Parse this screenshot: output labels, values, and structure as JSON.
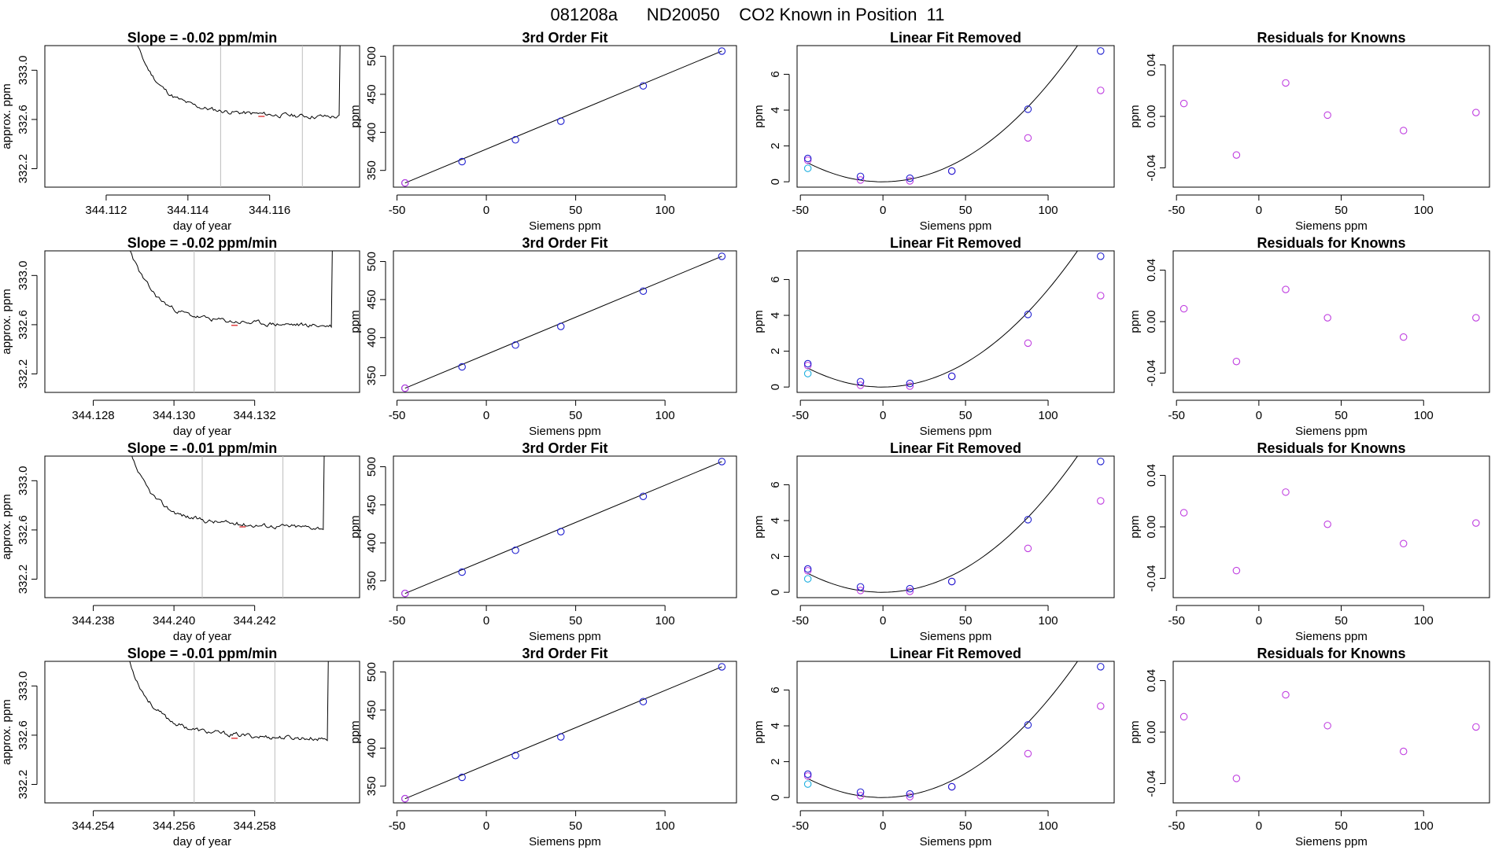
{
  "page": {
    "title": "081208a      ND20050    CO2 Known in Position  11"
  },
  "colors": {
    "axis": "#000000",
    "trace": "#000000",
    "vline": "#bdbdbd",
    "redmark": "#e04040",
    "fit_point": "#2020d0",
    "known_point": "#c040e0",
    "cyan_point": "#20b0e0"
  },
  "labels": {
    "xlabel_time": "day of year",
    "ylabel_time": "approx. ppm",
    "title_fit": "3rd Order Fit",
    "title_lin": "Linear Fit Removed",
    "title_res": "Residuals for Knowns",
    "xlabel_siemens": "Siemens ppm",
    "ylabel_ppm": "ppm"
  },
  "chart_data": [
    {
      "type": "line",
      "row": 1,
      "title": "Slope =  -0.02  ppm/min",
      "xlabel": "day of year",
      "ylabel": "approx. ppm",
      "xlim": [
        344.1105,
        344.1182
      ],
      "ylim": [
        332.05,
        333.2
      ],
      "xticks": [
        344.112,
        344.114,
        344.116
      ],
      "xtick_labels": [
        "344.112",
        "344.114",
        "344.116"
      ],
      "yticks": [
        332.2,
        332.6,
        333.0
      ],
      "ytick_labels": [
        "332.2",
        "332.6",
        "333.0"
      ],
      "window_start": 344.1148,
      "window_end": 344.1168,
      "trace_start": 344.1124,
      "trace_end": 344.1177,
      "plateau": 332.63,
      "seed": 11,
      "vlines": [
        344.1148,
        344.1168
      ]
    },
    {
      "type": "line",
      "row": 2,
      "title": "Slope =  -0.02  ppm/min",
      "xlabel": "day of year",
      "ylabel": "approx. ppm",
      "xlim": [
        344.1268,
        344.1346
      ],
      "ylim": [
        332.05,
        333.2
      ],
      "xticks": [
        344.128,
        344.13,
        344.132
      ],
      "xtick_labels": [
        "344.128",
        "344.130",
        "344.132"
      ],
      "yticks": [
        332.2,
        332.6,
        333.0
      ],
      "ytick_labels": [
        "332.2",
        "332.6",
        "333.0"
      ],
      "window_start": 344.1305,
      "window_end": 344.1325,
      "trace_start": 344.1286,
      "trace_end": 344.1339,
      "plateau": 332.6,
      "seed": 23,
      "vlines": [
        344.1305,
        344.1325
      ]
    },
    {
      "type": "line",
      "row": 3,
      "title": "Slope =  -0.01  ppm/min",
      "xlabel": "day of year",
      "ylabel": "approx. ppm",
      "xlim": [
        344.2368,
        344.2446
      ],
      "ylim": [
        332.05,
        333.2
      ],
      "xticks": [
        344.238,
        344.24,
        344.242
      ],
      "xtick_labels": [
        "344.238",
        "344.240",
        "344.242"
      ],
      "yticks": [
        332.2,
        332.6,
        333.0
      ],
      "ytick_labels": [
        "332.2",
        "332.6",
        "333.0"
      ],
      "window_start": 344.2407,
      "window_end": 344.2427,
      "trace_start": 344.2386,
      "trace_end": 344.2437,
      "plateau": 332.63,
      "seed": 37,
      "vlines": [
        344.2407,
        344.2427
      ]
    },
    {
      "type": "line",
      "row": 4,
      "title": "Slope =  -0.01  ppm/min",
      "xlabel": "day of year",
      "ylabel": "approx. ppm",
      "xlim": [
        344.2528,
        344.2606
      ],
      "ylim": [
        332.05,
        333.2
      ],
      "xticks": [
        344.254,
        344.256,
        344.258
      ],
      "xtick_labels": [
        "344.254",
        "344.256",
        "344.258"
      ],
      "yticks": [
        332.2,
        332.6,
        333.0
      ],
      "ytick_labels": [
        "332.2",
        "332.6",
        "333.0"
      ],
      "window_start": 344.2565,
      "window_end": 344.2585,
      "trace_start": 344.2546,
      "trace_end": 344.2598,
      "plateau": 332.58,
      "seed": 53,
      "vlines": [
        344.2565,
        344.2585
      ]
    },
    {
      "type": "scatter",
      "row": 1,
      "title": "3rd Order Fit",
      "xlabel": "Siemens ppm",
      "ylabel": "ppm",
      "xlim": [
        -52,
        140
      ],
      "ylim": [
        328,
        514
      ],
      "xticks": [
        -50,
        0,
        50,
        100
      ],
      "yticks": [
        350,
        400,
        450,
        500
      ],
      "x": [
        -45.5,
        -13.6,
        16.3,
        41.7,
        87.8,
        131.8
      ],
      "y": [
        333.5,
        361.6,
        390.2,
        414.7,
        461.1,
        506.8
      ]
    },
    {
      "type": "scatter",
      "row": 2,
      "title": "3rd Order Fit",
      "xlabel": "Siemens ppm",
      "ylabel": "ppm",
      "xlim": [
        -52,
        140
      ],
      "ylim": [
        328,
        514
      ],
      "xticks": [
        -50,
        0,
        50,
        100
      ],
      "yticks": [
        350,
        400,
        450,
        500
      ],
      "x": [
        -45.5,
        -13.6,
        16.3,
        41.7,
        87.8,
        131.8
      ],
      "y": [
        333.5,
        361.6,
        390.2,
        414.7,
        461.1,
        506.8
      ]
    },
    {
      "type": "scatter",
      "row": 3,
      "title": "3rd Order Fit",
      "xlabel": "Siemens ppm",
      "ylabel": "ppm",
      "xlim": [
        -52,
        140
      ],
      "ylim": [
        328,
        514
      ],
      "xticks": [
        -50,
        0,
        50,
        100
      ],
      "yticks": [
        350,
        400,
        450,
        500
      ],
      "x": [
        -45.5,
        -13.6,
        16.3,
        41.7,
        87.8,
        131.8
      ],
      "y": [
        333.5,
        361.6,
        390.2,
        414.7,
        461.1,
        506.8
      ]
    },
    {
      "type": "scatter",
      "row": 4,
      "title": "3rd Order Fit",
      "xlabel": "Siemens ppm",
      "ylabel": "ppm",
      "xlim": [
        -52,
        140
      ],
      "ylim": [
        328,
        514
      ],
      "xticks": [
        -50,
        0,
        50,
        100
      ],
      "yticks": [
        350,
        400,
        450,
        500
      ],
      "x": [
        -45.5,
        -13.6,
        16.3,
        41.7,
        87.8,
        131.8
      ],
      "y": [
        333.5,
        361.6,
        390.2,
        414.7,
        461.1,
        506.8
      ]
    },
    {
      "type": "scatter",
      "row": 1,
      "title": "Linear Fit Removed",
      "xlabel": "Siemens ppm",
      "ylabel": "ppm",
      "xlim": [
        -52,
        140
      ],
      "ylim": [
        -0.3,
        7.6
      ],
      "xticks": [
        -50,
        0,
        50,
        100
      ],
      "yticks": [
        0,
        2,
        4,
        6
      ],
      "fit_x": [
        -45.5,
        -13.6,
        16.3,
        41.7,
        87.8,
        131.8
      ],
      "fit_y": [
        1.3,
        0.3,
        0.2,
        0.6,
        4.05,
        7.3
      ],
      "known_x": [
        -45.5,
        -13.6,
        16.3,
        41.7,
        87.8,
        131.8
      ],
      "known_y": [
        1.2,
        0.1,
        0.05,
        0.6,
        2.45,
        5.1
      ],
      "cyan_x": [
        -45.5
      ],
      "cyan_y": [
        0.75
      ],
      "curve_coef": [
        0.00052,
        0.00045,
        0.0
      ]
    },
    {
      "type": "scatter",
      "row": 2,
      "title": "Linear Fit Removed",
      "xlabel": "Siemens ppm",
      "ylabel": "ppm",
      "xlim": [
        -52,
        140
      ],
      "ylim": [
        -0.3,
        7.6
      ],
      "xticks": [
        -50,
        0,
        50,
        100
      ],
      "yticks": [
        0,
        2,
        4,
        6
      ],
      "fit_x": [
        -45.5,
        -13.6,
        16.3,
        41.7,
        87.8,
        131.8
      ],
      "fit_y": [
        1.3,
        0.3,
        0.2,
        0.6,
        4.05,
        7.3
      ],
      "known_x": [
        -45.5,
        -13.6,
        16.3,
        41.7,
        87.8,
        131.8
      ],
      "known_y": [
        1.2,
        0.1,
        0.05,
        0.6,
        2.45,
        5.1
      ],
      "cyan_x": [
        -45.5
      ],
      "cyan_y": [
        0.75
      ],
      "curve_coef": [
        0.00052,
        0.00045,
        0.0
      ]
    },
    {
      "type": "scatter",
      "row": 3,
      "title": "Linear Fit Removed",
      "xlabel": "Siemens ppm",
      "ylabel": "ppm",
      "xlim": [
        -52,
        140
      ],
      "ylim": [
        -0.3,
        7.6
      ],
      "xticks": [
        -50,
        0,
        50,
        100
      ],
      "yticks": [
        0,
        2,
        4,
        6
      ],
      "fit_x": [
        -45.5,
        -13.6,
        16.3,
        41.7,
        87.8,
        131.8
      ],
      "fit_y": [
        1.3,
        0.3,
        0.2,
        0.6,
        4.05,
        7.3
      ],
      "known_x": [
        -45.5,
        -13.6,
        16.3,
        41.7,
        87.8,
        131.8
      ],
      "known_y": [
        1.2,
        0.1,
        0.05,
        0.6,
        2.45,
        5.1
      ],
      "cyan_x": [
        -45.5
      ],
      "cyan_y": [
        0.75
      ],
      "curve_coef": [
        0.00052,
        0.00045,
        0.0
      ]
    },
    {
      "type": "scatter",
      "row": 4,
      "title": "Linear Fit Removed",
      "xlabel": "Siemens ppm",
      "ylabel": "ppm",
      "xlim": [
        -52,
        140
      ],
      "ylim": [
        -0.3,
        7.6
      ],
      "xticks": [
        -50,
        0,
        50,
        100
      ],
      "yticks": [
        0,
        2,
        4,
        6
      ],
      "fit_x": [
        -45.5,
        -13.6,
        16.3,
        41.7,
        87.8,
        131.8
      ],
      "fit_y": [
        1.3,
        0.3,
        0.2,
        0.6,
        4.05,
        7.3
      ],
      "known_x": [
        -45.5,
        -13.6,
        16.3,
        41.7,
        87.8,
        131.8
      ],
      "known_y": [
        1.2,
        0.1,
        0.05,
        0.6,
        2.45,
        5.1
      ],
      "cyan_x": [
        -45.5
      ],
      "cyan_y": [
        0.75
      ],
      "curve_coef": [
        0.00052,
        0.00045,
        0.0
      ]
    },
    {
      "type": "scatter",
      "row": 1,
      "title": "Residuals for Knowns",
      "xlabel": "Siemens ppm",
      "ylabel": "ppm",
      "xlim": [
        -52,
        140
      ],
      "ylim": [
        -0.055,
        0.055
      ],
      "xticks": [
        -50,
        0,
        50,
        100
      ],
      "yticks": [
        -0.04,
        0.0,
        0.04
      ],
      "ytick_labels": [
        "-0.04",
        "0.00",
        "0.04"
      ],
      "x": [
        -45.5,
        -13.6,
        16.3,
        41.7,
        87.8,
        131.8
      ],
      "y": [
        0.01,
        -0.03,
        0.026,
        0.001,
        -0.011,
        0.003
      ]
    },
    {
      "type": "scatter",
      "row": 2,
      "title": "Residuals for Knowns",
      "xlabel": "Siemens ppm",
      "ylabel": "ppm",
      "xlim": [
        -52,
        140
      ],
      "ylim": [
        -0.055,
        0.055
      ],
      "xticks": [
        -50,
        0,
        50,
        100
      ],
      "yticks": [
        -0.04,
        0.0,
        0.04
      ],
      "ytick_labels": [
        "-0.04",
        "0.00",
        "0.04"
      ],
      "x": [
        -45.5,
        -13.6,
        16.3,
        41.7,
        87.8,
        131.8
      ],
      "y": [
        0.01,
        -0.031,
        0.025,
        0.003,
        -0.012,
        0.003
      ]
    },
    {
      "type": "scatter",
      "row": 3,
      "title": "Residuals for Knowns",
      "xlabel": "Siemens ppm",
      "ylabel": "ppm",
      "xlim": [
        -52,
        140
      ],
      "ylim": [
        -0.055,
        0.055
      ],
      "xticks": [
        -50,
        0,
        50,
        100
      ],
      "yticks": [
        -0.04,
        0.0,
        0.04
      ],
      "ytick_labels": [
        "-0.04",
        "0.00",
        "0.04"
      ],
      "x": [
        -45.5,
        -13.6,
        16.3,
        41.7,
        87.8,
        131.8
      ],
      "y": [
        0.011,
        -0.034,
        0.027,
        0.002,
        -0.013,
        0.003
      ]
    },
    {
      "type": "scatter",
      "row": 4,
      "title": "Residuals for Knowns",
      "xlabel": "Siemens ppm",
      "ylabel": "ppm",
      "xlim": [
        -52,
        140
      ],
      "ylim": [
        -0.055,
        0.055
      ],
      "xticks": [
        -50,
        0,
        50,
        100
      ],
      "yticks": [
        -0.04,
        0.0,
        0.04
      ],
      "ytick_labels": [
        "-0.04",
        "0.00",
        "0.04"
      ],
      "x": [
        -45.5,
        -13.6,
        16.3,
        41.7,
        87.8,
        131.8
      ],
      "y": [
        0.012,
        -0.036,
        0.029,
        0.005,
        -0.015,
        0.004
      ]
    }
  ]
}
